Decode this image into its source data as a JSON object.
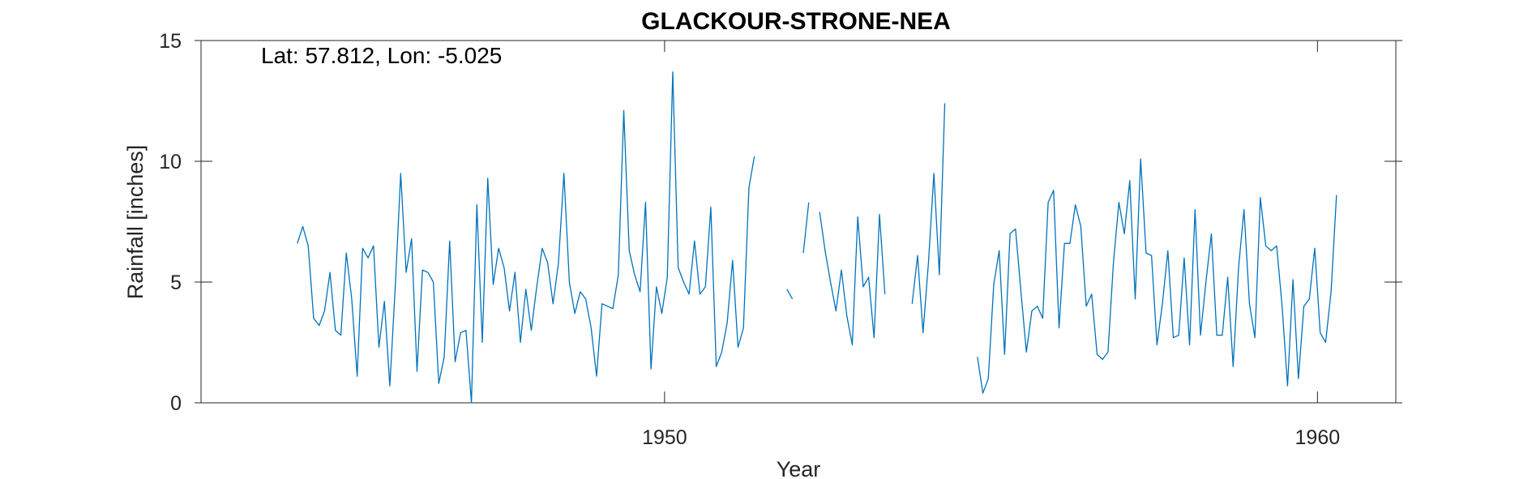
{
  "chart_data": {
    "type": "line",
    "title": "GLACKOUR-STRONE-NEA",
    "xlabel": "Year",
    "ylabel": "Rainfall [inches]",
    "annotation": "Lat: 57.812, Lon: -5.025",
    "xlim": [
      1942.9,
      1961.2
    ],
    "ylim": [
      0,
      15
    ],
    "xticks": [
      1950,
      1960
    ],
    "yticks": [
      0,
      5,
      10,
      15
    ],
    "grid": false,
    "legend": "none",
    "line_color": "#0072bd",
    "series": [
      {
        "x_start": 1944.375,
        "x_step": 0.083333,
        "values": [
          6.6,
          7.3,
          6.5,
          3.5,
          3.2,
          3.8,
          5.4,
          3.0,
          2.8,
          6.2,
          4.3,
          1.1,
          6.4,
          6.0,
          6.5,
          2.3,
          4.2,
          0.7,
          4.8,
          9.5,
          5.4,
          6.8,
          1.3,
          5.5,
          5.4,
          5.0,
          0.8,
          1.9,
          6.7,
          1.7,
          2.9,
          3.0,
          0.0,
          8.2,
          2.5,
          9.3,
          4.9,
          6.4,
          5.6,
          3.8,
          5.4,
          2.5,
          4.7,
          3.0,
          4.8,
          6.4,
          5.8,
          4.1,
          5.8,
          9.5,
          5.0,
          3.7,
          4.6,
          4.3,
          3.1,
          1.1,
          4.1,
          4.0,
          3.9,
          5.3,
          12.1,
          6.3,
          5.3,
          4.6,
          8.3,
          1.4,
          4.8,
          3.7,
          5.2,
          13.7,
          5.6,
          5.0,
          4.5,
          6.7,
          4.5,
          4.8,
          8.1,
          1.5,
          2.1,
          3.3,
          5.9,
          2.3,
          3.1,
          8.9,
          10.2,
          null,
          null,
          null,
          null,
          null,
          4.7,
          4.3,
          null,
          6.2,
          8.3,
          null,
          7.9,
          6.3,
          5.0,
          3.8,
          5.5,
          3.6,
          2.4,
          7.7,
          4.8,
          5.2,
          2.7,
          7.8,
          4.5,
          null,
          null,
          null,
          null,
          4.1,
          6.1,
          2.9,
          5.8,
          9.5,
          5.3,
          12.4,
          null,
          null,
          null,
          null,
          null,
          1.9,
          0.4,
          1.0,
          4.9,
          6.3,
          2.0,
          7.0,
          7.2,
          4.6,
          2.1,
          3.8,
          4.0,
          3.5,
          8.3,
          8.8,
          3.1,
          6.6,
          6.6,
          8.2,
          7.3,
          4.0,
          4.5,
          2.0,
          1.8,
          2.1,
          5.8,
          8.3,
          7.0,
          9.2,
          4.3,
          10.1,
          6.2,
          6.1,
          2.4,
          4.1,
          6.3,
          2.7,
          2.8,
          6.0,
          2.4,
          8.0,
          2.8,
          5.0,
          7.0,
          2.8,
          2.8,
          5.2,
          1.5,
          5.6,
          8.0,
          4.1,
          2.7,
          8.5,
          6.5,
          6.3,
          6.5,
          4.0,
          0.7,
          5.1,
          1.0,
          4.0,
          4.3,
          6.4,
          2.9,
          2.5,
          4.6,
          8.6
        ]
      }
    ]
  }
}
